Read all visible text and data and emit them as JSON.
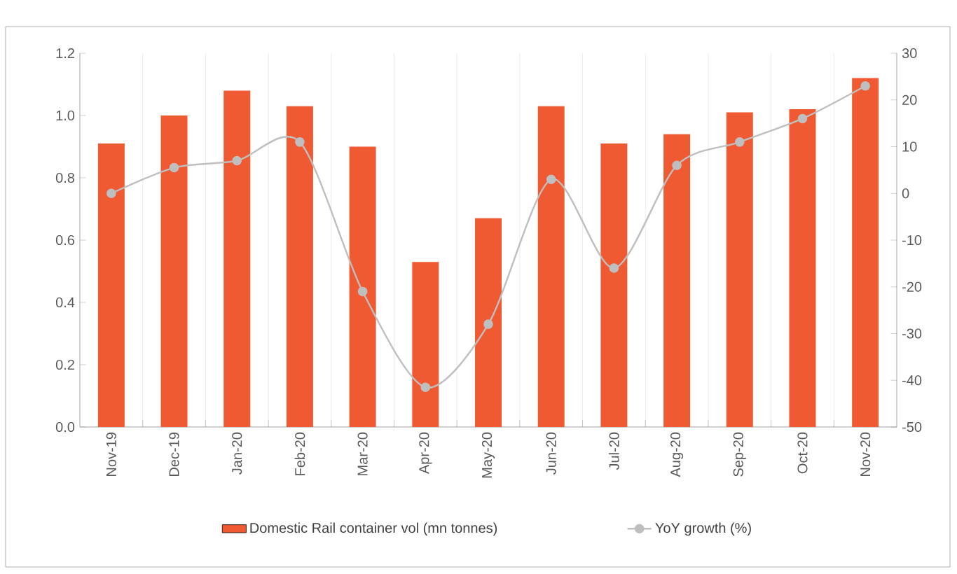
{
  "chart_data": {
    "type": "bar",
    "categories": [
      "Nov-19",
      "Dec-19",
      "Jan-20",
      "Feb-20",
      "Mar-20",
      "Apr-20",
      "May-20",
      "Jun-20",
      "Jul-20",
      "Aug-20",
      "Sep-20",
      "Oct-20",
      "Nov-20"
    ],
    "series": [
      {
        "name": "Domestic Rail container vol (mn tonnes)",
        "color": "#f05a32",
        "values": [
          0.91,
          1.0,
          1.08,
          1.03,
          0.9,
          0.53,
          0.67,
          1.03,
          0.91,
          0.94,
          1.01,
          1.02,
          1.12
        ]
      },
      {
        "name": "YoY growth  (%)",
        "type": "line",
        "axis": "y2",
        "color": "#bfbfbf",
        "marker": "circle",
        "values": [
          0,
          5.5,
          7,
          11,
          -21,
          -41.5,
          -28,
          3,
          -16,
          6,
          11,
          16,
          23
        ]
      }
    ],
    "ylim": [
      0,
      1.2
    ],
    "yticks": [
      {
        "value": 0,
        "label": "0.0"
      },
      {
        "value": 0.2,
        "label": "0.2"
      },
      {
        "value": 0.4,
        "label": "0.4"
      },
      {
        "value": 0.6,
        "label": "0.6"
      },
      {
        "value": 0.8,
        "label": "0.8"
      },
      {
        "value": 1.0,
        "label": "1.0"
      },
      {
        "value": 1.2,
        "label": "1.2"
      }
    ],
    "y2lim": [
      -50,
      30
    ],
    "y2ticks": [
      -50,
      -40,
      -30,
      -20,
      -10,
      0,
      10,
      20,
      30
    ],
    "grid": "x",
    "legend": "bottom"
  }
}
